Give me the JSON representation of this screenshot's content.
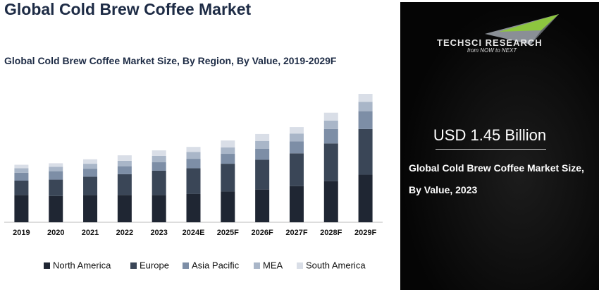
{
  "title": "Global Cold Brew Coffee Market",
  "chart_data": {
    "type": "bar",
    "stacked": true,
    "title": "Global Cold Brew Coffee Market Size, By Region, By Value, 2019-2029F",
    "categories": [
      "2019",
      "2020",
      "2021",
      "2022",
      "2023",
      "2024E",
      "2025F",
      "2026F",
      "2027F",
      "2028F",
      "2029F"
    ],
    "series": [
      {
        "name": "North America",
        "color": "#1f2633",
        "values": [
          0.55,
          0.53,
          0.55,
          0.55,
          0.55,
          0.57,
          0.62,
          0.66,
          0.73,
          0.83,
          0.96
        ]
      },
      {
        "name": "Europe",
        "color": "#3a4657",
        "values": [
          0.29,
          0.33,
          0.37,
          0.42,
          0.49,
          0.52,
          0.56,
          0.6,
          0.66,
          0.76,
          0.92
        ]
      },
      {
        "name": "Asia Pacific",
        "color": "#7d8ea6",
        "values": [
          0.16,
          0.17,
          0.16,
          0.16,
          0.17,
          0.19,
          0.2,
          0.22,
          0.24,
          0.29,
          0.36
        ]
      },
      {
        "name": "MEA",
        "color": "#a9b6c8",
        "values": [
          0.09,
          0.09,
          0.1,
          0.11,
          0.13,
          0.14,
          0.13,
          0.16,
          0.16,
          0.17,
          0.19
        ]
      },
      {
        "name": "South America",
        "color": "#d9dee7",
        "values": [
          0.07,
          0.07,
          0.09,
          0.11,
          0.11,
          0.1,
          0.14,
          0.14,
          0.13,
          0.16,
          0.16
        ]
      }
    ]
  },
  "panel": {
    "brand": "TECHSCI RESEARCH",
    "tagline": "from NOW to NEXT",
    "value": "USD 1.45 Billion",
    "caption": "Global Cold Brew Coffee Market Size, By Value, 2023"
  }
}
